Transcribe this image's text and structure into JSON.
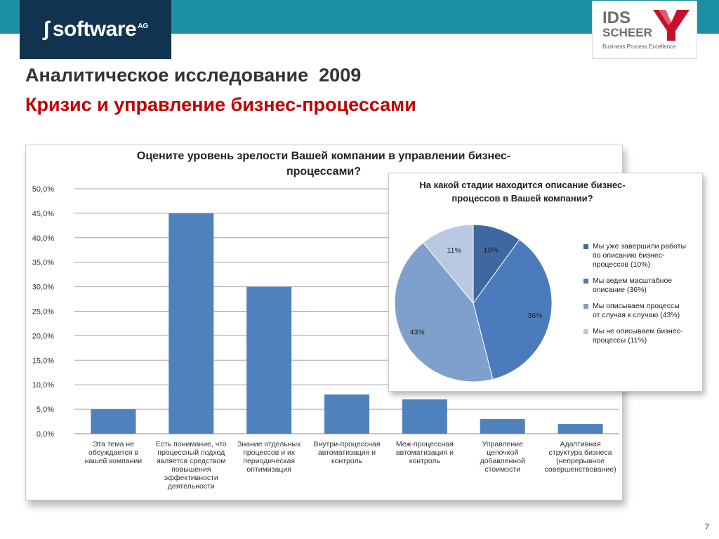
{
  "header": {
    "software_logo": {
      "word": "software",
      "suffix": "AG"
    },
    "ids_logo": {
      "line1": "IDS",
      "line2": "SCHEER",
      "tagline": "Business Process Excellence"
    },
    "title": "Аналитическое исследование  2009",
    "subtitle": "Кризис и управление бизнес-процессами"
  },
  "colors": {
    "band": "#1c8fa3",
    "bar": "#4f81bd",
    "subtitle": "#c00000",
    "pie": [
      "#3f68a0",
      "#4c7bbd",
      "#7f9fcc",
      "#b9c8e3"
    ]
  },
  "chart_data": [
    {
      "type": "bar",
      "title": "Оцените уровень зрелости Вашей компании в управлении бизнес-процессами?",
      "title_lines": [
        "Оцените уровень зрелости Вашей компании в управлении бизнес-",
        "процессами?"
      ],
      "categories": [
        "Эта тема не обсуждается в нашей компании",
        "Есть понимание, что процессный подход является средством повышения эффективности деятельности",
        "Знание отдельных процессов и их периодическая оптимизация",
        "Внутри-процессная автоматизация и контроль",
        "Меж-процессная автоматизация и контроль",
        "Управление цепочкой добавленной стоимости",
        "Адаптивная структура бизнеса (непрерывное совершенствование)"
      ],
      "category_lines": [
        [
          "Эта тема не",
          "обсуждается в",
          "нашей компании"
        ],
        [
          "Есть понимание, что",
          "процессный подход",
          "является средством",
          "повышения",
          "эффективности",
          "деятельности"
        ],
        [
          "Знание отдельных",
          "процессов и их",
          "периодическая",
          "оптимизация"
        ],
        [
          "Внутри-процессная",
          "автоматизация и",
          "контроль"
        ],
        [
          "Меж-процессная",
          "автоматизация и",
          "контроль"
        ],
        [
          "Управление",
          "цепочкой",
          "добавленной",
          "стоимости"
        ],
        [
          "Адаптивная",
          "структура бизнеса",
          "(непрерывное",
          "совершенствование)"
        ]
      ],
      "values": [
        5.0,
        45.0,
        30.0,
        8.0,
        7.0,
        3.0,
        2.0
      ],
      "ylim": [
        0,
        50
      ],
      "yticks": [
        "0,0%",
        "5,0%",
        "10,0%",
        "15,0%",
        "20,0%",
        "25,0%",
        "30,0%",
        "35,0%",
        "40,0%",
        "45,0%",
        "50,0%"
      ],
      "grid": true
    },
    {
      "type": "pie",
      "title": "На какой стадии находится описание бизнес-процессов в Вашей компании?",
      "title_lines": [
        "На какой стадии находится описание бизнес-",
        "процессов  в Вашей компании?"
      ],
      "slices": [
        {
          "label": "Мы уже завершили работы по описанию бизнес-процессов (10%)",
          "legend_lines": [
            "Мы уже завершили работы",
            "по описанию бизнес-",
            "процессов (10%)"
          ],
          "value": 10,
          "data_label": "10%"
        },
        {
          "label": "Мы ведем масштабное описание (36%)",
          "legend_lines": [
            "Мы ведем масштабное",
            "описание (36%)"
          ],
          "value": 36,
          "data_label": "36%"
        },
        {
          "label": "Мы описываем процессы от случая к случаю (43%)",
          "legend_lines": [
            "Мы описываем процессы",
            "от случая к случаю (43%)"
          ],
          "value": 43,
          "data_label": "43%"
        },
        {
          "label": "Мы не описываем бизнес-процессы (11%)",
          "legend_lines": [
            "Мы не описываем бизнес-",
            "процессы (11%)"
          ],
          "value": 11,
          "data_label": "11%"
        }
      ],
      "legend_position": "right"
    }
  ],
  "footer": {
    "page_number": "7"
  }
}
